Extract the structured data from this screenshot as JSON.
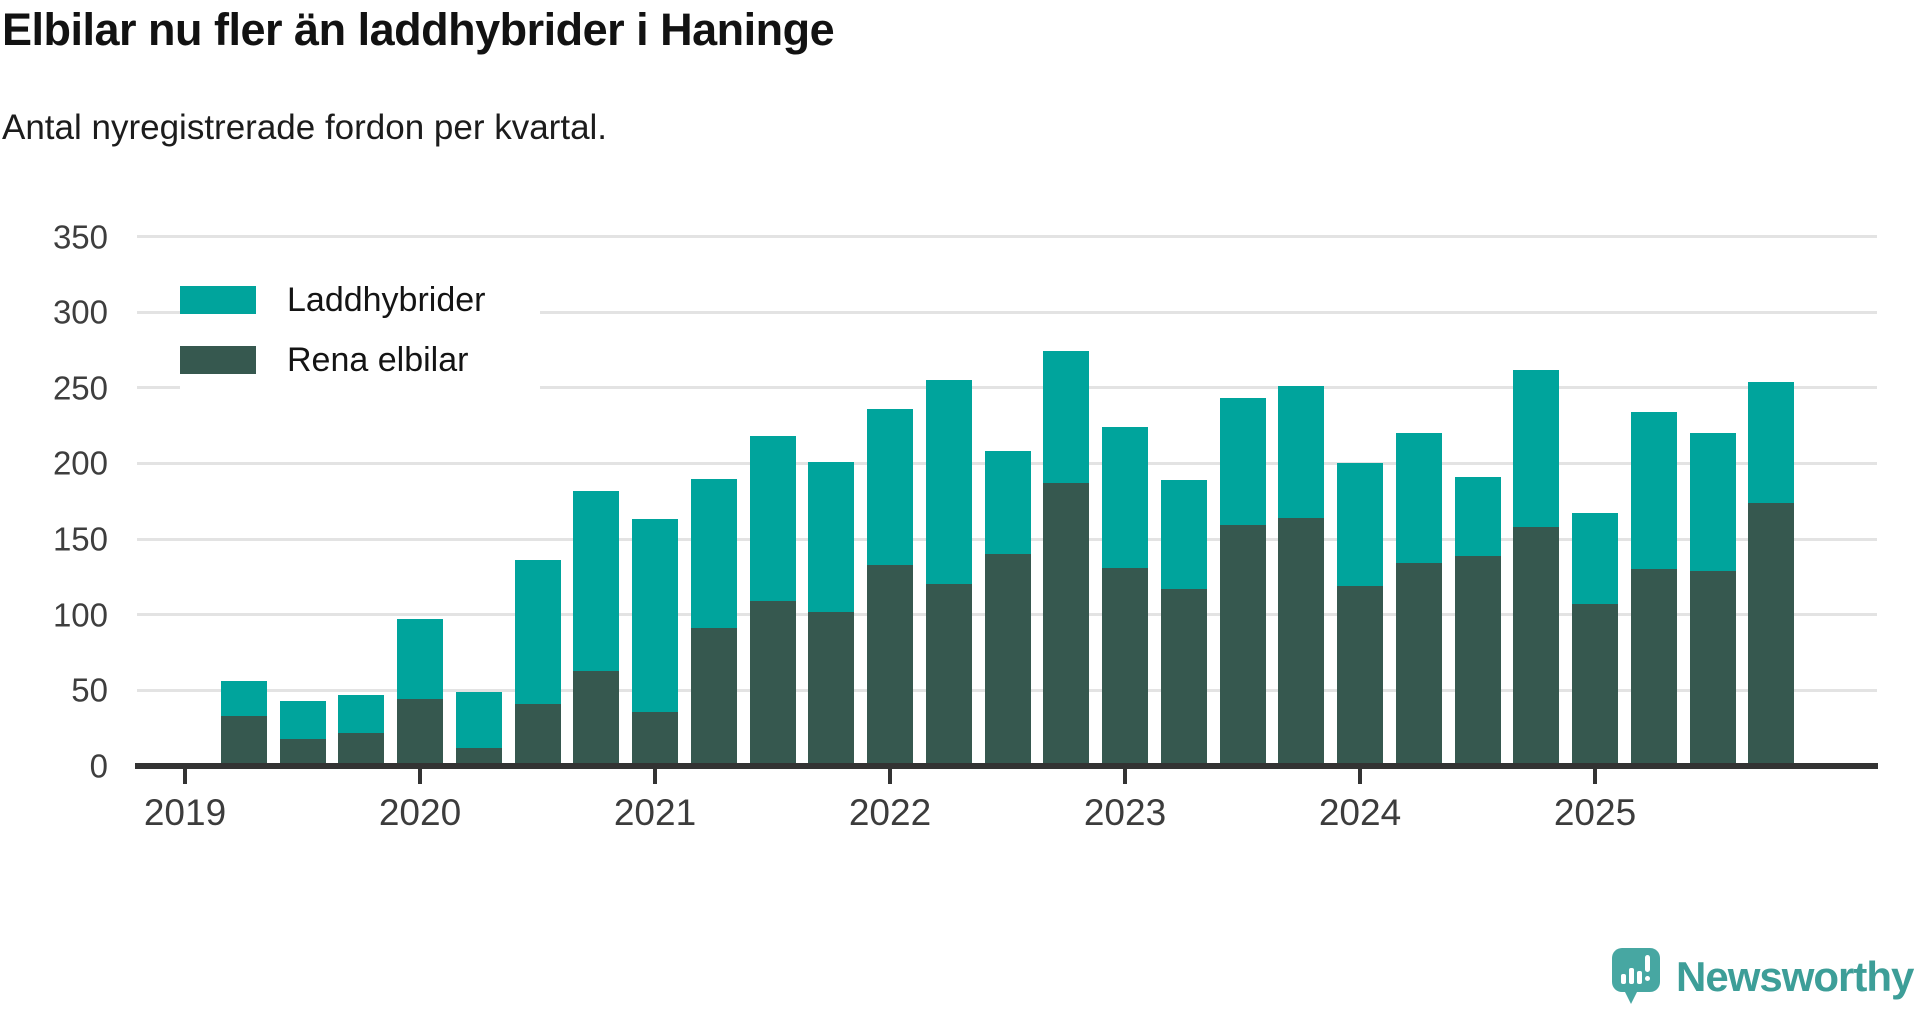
{
  "header": {
    "title": "Elbilar nu fler än laddhybrider i Haninge",
    "subtitle": "Antal nyregistrerade fordon per kvartal."
  },
  "footer": {
    "brand": "Newsworthy"
  },
  "colors": {
    "laddhybrider": "#00a49c",
    "rena_elbilar": "#36584f",
    "gridline": "#e3e3e3",
    "axis": "#333333",
    "brand_teal": "#3d9e98"
  },
  "chart_data": {
    "type": "bar",
    "stacked": true,
    "title": "Elbilar nu fler än laddhybrider i Haninge",
    "subtitle": "Antal nyregistrerade fordon per kvartal.",
    "categories": [
      "2019 Q2",
      "2019 Q3",
      "2019 Q4",
      "2020 Q1",
      "2020 Q2",
      "2020 Q3",
      "2020 Q4",
      "2021 Q1",
      "2021 Q2",
      "2021 Q3",
      "2021 Q4",
      "2022 Q1",
      "2022 Q2",
      "2022 Q3",
      "2022 Q4",
      "2023 Q1",
      "2023 Q2",
      "2023 Q3",
      "2023 Q4",
      "2024 Q1",
      "2024 Q2",
      "2024 Q3",
      "2024 Q4",
      "2025 Q1",
      "2025 Q2",
      "2025 Q3",
      "2025 Q4"
    ],
    "series": [
      {
        "name": "Laddhybrider",
        "color": "#00a49c",
        "values": [
          23,
          25,
          25,
          53,
          37,
          95,
          119,
          127,
          99,
          109,
          99,
          103,
          135,
          68,
          87,
          93,
          72,
          84,
          87,
          81,
          86,
          52,
          104,
          60,
          104,
          91,
          80
        ]
      },
      {
        "name": "Rena elbilar",
        "color": "#36584f",
        "values": [
          33,
          18,
          22,
          44,
          12,
          41,
          63,
          36,
          91,
          109,
          102,
          133,
          120,
          140,
          187,
          131,
          117,
          159,
          164,
          119,
          134,
          139,
          158,
          107,
          130,
          129,
          174
        ]
      }
    ],
    "totals": [
      56,
      43,
      47,
      97,
      49,
      136,
      182,
      163,
      190,
      218,
      201,
      236,
      255,
      208,
      274,
      224,
      189,
      243,
      251,
      200,
      220,
      191,
      262,
      167,
      234,
      220,
      254
    ],
    "stack_order_bottom_to_top": [
      "Rena elbilar",
      "Laddhybrider"
    ],
    "ylim": [
      0,
      350
    ],
    "yticks": [
      0,
      50,
      100,
      150,
      200,
      250,
      300,
      350
    ],
    "x_year_ticks": [
      "2019",
      "2020",
      "2021",
      "2022",
      "2023",
      "2024",
      "2025"
    ],
    "grid": "horizontal",
    "legend_position": "top-left"
  }
}
